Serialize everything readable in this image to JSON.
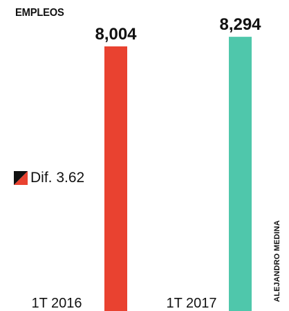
{
  "header": {
    "title": "EMPLEOS"
  },
  "difference": {
    "label": "Dif. 3.62"
  },
  "credit": "ALEJANDRO MEDINA",
  "chart_data": {
    "type": "bar",
    "categories": [
      "1T 2016",
      "1T 2017"
    ],
    "values": [
      8004,
      8294
    ],
    "value_labels": [
      "8,004",
      "8,294"
    ],
    "colors": [
      "#e94230",
      "#4fc7ab"
    ],
    "title": "EMPLEOS",
    "xlabel": "",
    "ylabel": "",
    "grid": false,
    "legend": "none"
  }
}
